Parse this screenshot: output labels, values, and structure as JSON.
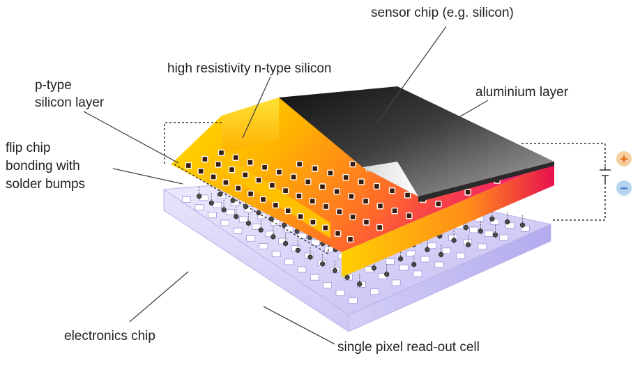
{
  "labels": {
    "sensor_chip": "sensor chip (e.g. silicon)",
    "high_resistivity": "high resistivity n-type silicon",
    "p_type_line1": "p-type",
    "p_type_line2": "silicon layer",
    "aluminium": "aluminium layer",
    "flip_line1": "flip chip",
    "flip_line2": "bonding with",
    "flip_line3": "solder bumps",
    "electronics": "electronics chip",
    "pixel_cell": "single pixel read-out cell"
  },
  "battery": {
    "plus": "+",
    "minus": "−"
  },
  "colors": {
    "sensor_gradient": [
      "#ffe000",
      "#ffb300",
      "#ff6a2a",
      "#f0146e"
    ],
    "aluminium_top": [
      "#111111",
      "#4a4a4a",
      "#9a9a9a"
    ],
    "electronics_chip": [
      "#e7e6fb",
      "#c7c3f3",
      "#b7b0ee"
    ],
    "plus_circle": "#f7cf9f",
    "plus_sign": "#e07020",
    "minus_circle": "#b9d4ef",
    "minus_sign": "#3a78c0",
    "leader_lines": "#444444"
  }
}
